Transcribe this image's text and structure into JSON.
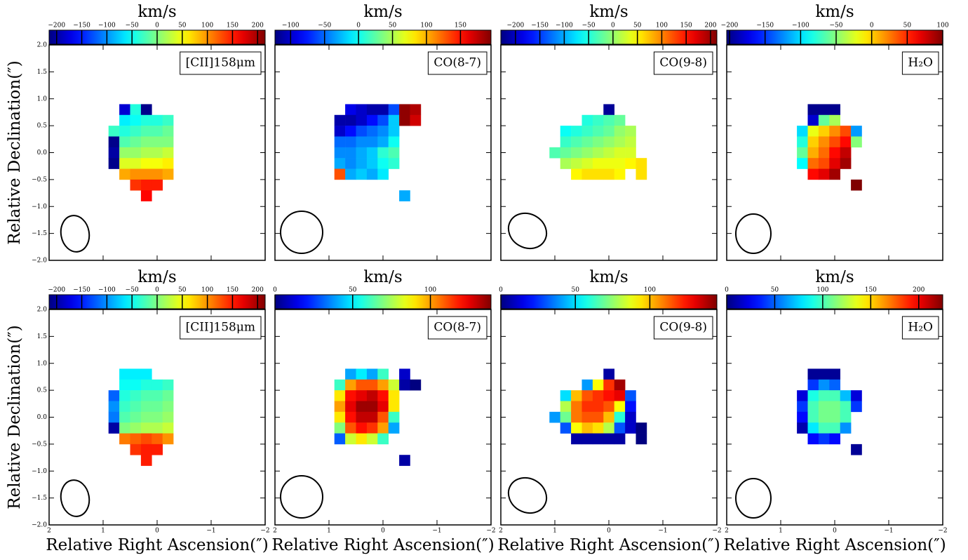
{
  "chart_data": {
    "type": "heatmap",
    "colormap": "jet",
    "xlabel": "Relative Right Ascension(″)",
    "ylabel": "Relative Declination(″)",
    "colorbar_label": "km/s",
    "xlim": [
      2,
      -2
    ],
    "ylim": [
      -2,
      2
    ],
    "xticks": [
      2,
      1,
      0,
      {
        "value": -1,
        "label": "−1"
      },
      {
        "value": -2,
        "label": "−2"
      }
    ],
    "yticks": [
      {
        "value": -2,
        "label": "−2.0"
      },
      {
        "value": -1.5,
        "label": "−1.5"
      },
      {
        "value": -1,
        "label": "−1.0"
      },
      {
        "value": -0.5,
        "label": "−0.5"
      },
      {
        "value": 0,
        "label": "0.0"
      },
      0.5,
      {
        "value": 1,
        "label": "1.0"
      },
      1.5,
      {
        "value": 2,
        "label": "2.0"
      }
    ],
    "x": [
      1.0,
      0.8,
      0.6,
      0.4,
      0.2,
      0.0,
      -0.2,
      -0.4,
      -0.6
    ],
    "y": [
      0.8,
      0.6,
      0.4,
      0.2,
      0.0,
      -0.2,
      -0.4,
      -0.6,
      -0.8
    ],
    "panels": [
      {
        "title": "[CII]158μm",
        "clim": [
          -215,
          215
        ],
        "cticks": [
          {
            "value": -200,
            "label": "−200"
          },
          {
            "value": -150,
            "label": "−150"
          },
          {
            "value": -100,
            "label": "−100"
          },
          {
            "value": -50,
            "label": "−50"
          },
          0,
          50,
          100,
          150,
          200
        ],
        "z": [
          [
            null,
            null,
            -180,
            -40,
            -210,
            null,
            null,
            null,
            null
          ],
          [
            null,
            null,
            -60,
            -50,
            -40,
            -40,
            -30,
            null,
            null
          ],
          [
            null,
            -30,
            -40,
            -30,
            -20,
            -20,
            -10,
            null,
            null
          ],
          [
            null,
            -210,
            -20,
            -10,
            0,
            0,
            0,
            null,
            null
          ],
          [
            null,
            -200,
            10,
            10,
            20,
            20,
            30,
            null,
            null
          ],
          [
            null,
            -210,
            40,
            40,
            50,
            50,
            60,
            null,
            null
          ],
          [
            null,
            null,
            90,
            100,
            100,
            100,
            90,
            null,
            null
          ],
          [
            null,
            null,
            null,
            140,
            150,
            150,
            null,
            null,
            null
          ],
          [
            null,
            null,
            null,
            null,
            160,
            null,
            null,
            null,
            null
          ]
        ]
      },
      {
        "title": "CO(8-7)",
        "clim": [
          -123,
          195
        ],
        "cticks": [
          {
            "value": -100,
            "label": "−100"
          },
          {
            "value": -50,
            "label": "−50"
          },
          0,
          50,
          100,
          150
        ],
        "z": [
          [
            null,
            null,
            -90,
            -100,
            -110,
            -110,
            -60,
            190,
            180
          ],
          [
            null,
            -110,
            -110,
            -100,
            -80,
            -60,
            -20,
            190,
            170
          ],
          [
            null,
            -100,
            -80,
            -60,
            -50,
            -40,
            -20,
            null,
            null
          ],
          [
            null,
            -50,
            -50,
            -40,
            -40,
            -30,
            0,
            null,
            null
          ],
          [
            null,
            -40,
            -40,
            -30,
            -20,
            10,
            20,
            null,
            null
          ],
          [
            null,
            -30,
            -40,
            -30,
            -20,
            0,
            10,
            null,
            null
          ],
          [
            null,
            130,
            -30,
            -20,
            -30,
            -10,
            null,
            null,
            null
          ],
          [
            null,
            null,
            null,
            null,
            null,
            null,
            null,
            null,
            null
          ],
          [
            null,
            null,
            null,
            null,
            null,
            null,
            null,
            -30,
            null
          ]
        ]
      },
      {
        "title": "CO(9-8)",
        "clim": [
          -230,
          213
        ],
        "cticks": [
          {
            "value": -200,
            "label": "−200"
          },
          {
            "value": -150,
            "label": "−150"
          },
          {
            "value": -100,
            "label": "−100"
          },
          {
            "value": -50,
            "label": "−50"
          },
          0,
          50,
          100,
          150,
          200
        ],
        "z": [
          [
            null,
            null,
            null,
            null,
            null,
            -220,
            null,
            null,
            null
          ],
          [
            null,
            null,
            null,
            -50,
            -40,
            -30,
            -20,
            null,
            null
          ],
          [
            null,
            -60,
            -50,
            -40,
            -30,
            -20,
            0,
            10,
            null
          ],
          [
            null,
            -40,
            -30,
            -20,
            -10,
            0,
            10,
            20,
            null
          ],
          [
            -30,
            -20,
            -10,
            0,
            10,
            20,
            30,
            30,
            null
          ],
          [
            null,
            10,
            20,
            30,
            40,
            40,
            40,
            50,
            60
          ],
          [
            null,
            null,
            50,
            60,
            60,
            60,
            50,
            null,
            60
          ],
          [
            null,
            null,
            null,
            null,
            null,
            null,
            null,
            null,
            null
          ],
          [
            null,
            null,
            null,
            null,
            null,
            null,
            null,
            null,
            null
          ]
        ]
      },
      {
        "title": "H₂O",
        "clim": [
          -204,
          100
        ],
        "cticks": [
          {
            "value": -200,
            "label": "−200"
          },
          {
            "value": -150,
            "label": "−150"
          },
          {
            "value": -100,
            "label": "−100"
          },
          {
            "value": -50,
            "label": "−50"
          },
          0,
          50,
          100
        ],
        "z": [
          [
            null,
            null,
            null,
            -200,
            -200,
            -200,
            null,
            null,
            null
          ],
          [
            null,
            null,
            null,
            -180,
            -60,
            -40,
            null,
            null,
            null
          ],
          [
            null,
            null,
            -100,
            -20,
            0,
            20,
            40,
            -120,
            null
          ],
          [
            null,
            null,
            -80,
            0,
            20,
            40,
            60,
            -50,
            null
          ],
          [
            null,
            null,
            -60,
            10,
            30,
            60,
            80,
            null,
            null
          ],
          [
            null,
            null,
            -90,
            30,
            40,
            70,
            90,
            null,
            null
          ],
          [
            null,
            null,
            null,
            60,
            70,
            90,
            null,
            null,
            null
          ],
          [
            null,
            null,
            null,
            null,
            null,
            null,
            null,
            100,
            null
          ],
          [
            null,
            null,
            null,
            null,
            null,
            null,
            null,
            null,
            null
          ]
        ]
      },
      {
        "title": "[CII]158μm",
        "clim": [
          -215,
          215
        ],
        "cticks": [
          {
            "value": -200,
            "label": "−200"
          },
          {
            "value": -150,
            "label": "−150"
          },
          {
            "value": -100,
            "label": "−100"
          },
          {
            "value": -50,
            "label": "−50"
          },
          0,
          50,
          100,
          150,
          200
        ],
        "z": [
          [
            null,
            null,
            -60,
            -60,
            -60,
            null,
            null,
            null,
            null
          ],
          [
            null,
            null,
            -50,
            -50,
            -40,
            -40,
            -30,
            null,
            null
          ],
          [
            null,
            -120,
            -40,
            -30,
            -20,
            -20,
            -10,
            null,
            null
          ],
          [
            null,
            -100,
            -30,
            -20,
            -10,
            -10,
            0,
            null,
            null
          ],
          [
            null,
            -110,
            -20,
            -10,
            0,
            0,
            10,
            null,
            null
          ],
          [
            null,
            -200,
            0,
            10,
            20,
            20,
            30,
            null,
            null
          ],
          [
            null,
            null,
            110,
            120,
            130,
            120,
            100,
            null,
            null
          ],
          [
            null,
            null,
            null,
            140,
            150,
            150,
            null,
            null,
            null
          ],
          [
            null,
            null,
            null,
            null,
            150,
            null,
            null,
            null,
            null
          ]
        ]
      },
      {
        "title": "CO(8-7)",
        "clim": [
          0,
          139
        ],
        "cticks": [
          0,
          50,
          100
        ],
        "z": [
          [
            null,
            null,
            40,
            50,
            40,
            60,
            null,
            10,
            null
          ],
          [
            null,
            60,
            100,
            110,
            110,
            100,
            80,
            5,
            0
          ],
          [
            null,
            90,
            120,
            125,
            130,
            120,
            90,
            null,
            null
          ],
          [
            null,
            100,
            125,
            135,
            135,
            125,
            90,
            null,
            null
          ],
          [
            null,
            90,
            120,
            130,
            130,
            110,
            60,
            null,
            null
          ],
          [
            null,
            70,
            110,
            120,
            115,
            100,
            40,
            null,
            null
          ],
          [
            null,
            30,
            80,
            90,
            80,
            60,
            null,
            null,
            null
          ],
          [
            null,
            null,
            null,
            null,
            null,
            null,
            null,
            null,
            null
          ],
          [
            null,
            null,
            null,
            null,
            null,
            null,
            null,
            5,
            null
          ]
        ]
      },
      {
        "title": "CO(9-8)",
        "clim": [
          0,
          145
        ],
        "cticks": [
          0,
          50,
          100
        ],
        "z": [
          [
            null,
            null,
            null,
            null,
            null,
            5,
            null,
            null,
            null
          ],
          [
            null,
            null,
            null,
            40,
            90,
            120,
            140,
            null,
            null
          ],
          [
            null,
            50,
            100,
            115,
            120,
            125,
            130,
            30,
            null
          ],
          [
            null,
            80,
            110,
            120,
            120,
            115,
            90,
            20,
            null
          ],
          [
            40,
            70,
            110,
            115,
            115,
            100,
            60,
            10,
            null
          ],
          [
            null,
            30,
            90,
            100,
            95,
            80,
            30,
            10,
            0
          ],
          [
            null,
            null,
            5,
            5,
            5,
            5,
            5,
            null,
            0
          ],
          [
            null,
            null,
            null,
            null,
            null,
            null,
            null,
            null,
            null
          ],
          [
            null,
            null,
            null,
            null,
            null,
            null,
            null,
            null,
            null
          ]
        ]
      },
      {
        "title": "H₂O",
        "clim": [
          0,
          225
        ],
        "cticks": [
          0,
          50,
          100,
          150,
          200
        ],
        "z": [
          [
            null,
            null,
            null,
            5,
            5,
            5,
            null,
            null,
            null
          ],
          [
            null,
            null,
            null,
            40,
            60,
            50,
            null,
            null,
            null
          ],
          [
            null,
            null,
            20,
            90,
            100,
            100,
            70,
            20,
            null
          ],
          [
            null,
            null,
            40,
            100,
            110,
            110,
            100,
            40,
            null
          ],
          [
            null,
            null,
            30,
            100,
            110,
            110,
            100,
            null,
            null
          ],
          [
            null,
            null,
            10,
            80,
            100,
            100,
            60,
            null,
            null
          ],
          [
            null,
            null,
            null,
            30,
            40,
            30,
            null,
            null,
            null
          ],
          [
            null,
            null,
            null,
            null,
            null,
            null,
            null,
            5,
            null
          ],
          [
            null,
            null,
            null,
            null,
            null,
            null,
            null,
            null,
            null
          ]
        ]
      }
    ]
  }
}
